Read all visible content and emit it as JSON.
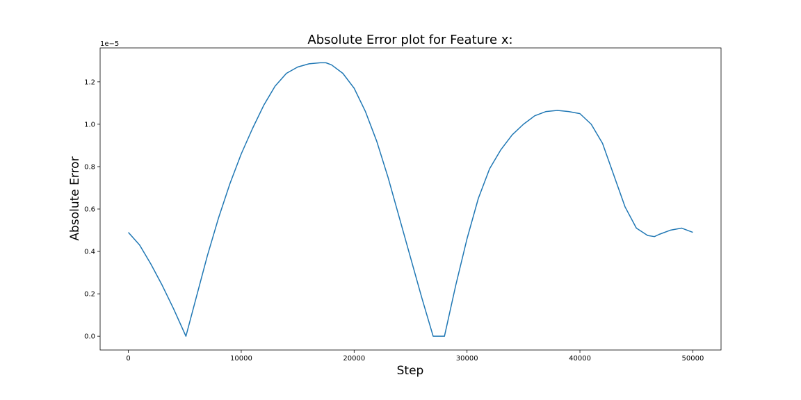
{
  "chart_data": {
    "type": "line",
    "title": "Absolute Error plot for Feature x:",
    "xlabel": "Step",
    "ylabel": "Absolute Error",
    "y_offset_label": "1e−5",
    "xlim": [
      -2500,
      52500
    ],
    "ylim": [
      -0.065,
      1.36
    ],
    "xticks": [
      0,
      10000,
      20000,
      30000,
      40000,
      50000
    ],
    "xtick_labels": [
      "0",
      "10000",
      "20000",
      "30000",
      "40000",
      "50000"
    ],
    "yticks": [
      0.0,
      0.2,
      0.4,
      0.6,
      0.8,
      1.0,
      1.2
    ],
    "ytick_labels": [
      "0.0",
      "0.2",
      "0.4",
      "0.6",
      "0.8",
      "1.0",
      "1.2"
    ],
    "grid": false,
    "line_color": "#1f77b4",
    "series": [
      {
        "x": [
          0,
          1000,
          2000,
          3000,
          4000,
          5100,
          6000,
          7000,
          8000,
          9000,
          10000,
          11000,
          12000,
          13000,
          14000,
          15000,
          16000,
          17000,
          17500,
          18000,
          19000,
          20000,
          21000,
          22000,
          23000,
          24000,
          25000,
          26000,
          27000,
          28000,
          29000,
          30000,
          31000,
          32000,
          33000,
          34000,
          35000,
          36000,
          37000,
          38000,
          39000,
          39500,
          40000,
          41000,
          42000,
          43000,
          44000,
          45000,
          46000,
          46600,
          47000,
          48000,
          49000,
          50000
        ],
        "y": [
          0.49,
          0.43,
          0.34,
          0.24,
          0.13,
          0.0,
          0.18,
          0.38,
          0.56,
          0.72,
          0.86,
          0.98,
          1.09,
          1.18,
          1.24,
          1.27,
          1.285,
          1.29,
          1.29,
          1.28,
          1.24,
          1.17,
          1.06,
          0.92,
          0.75,
          0.56,
          0.37,
          0.18,
          0.0,
          0.0,
          0.24,
          0.46,
          0.65,
          0.79,
          0.88,
          0.95,
          1.0,
          1.04,
          1.06,
          1.065,
          1.06,
          1.055,
          1.05,
          1.0,
          0.91,
          0.76,
          0.61,
          0.51,
          0.475,
          0.47,
          0.48,
          0.5,
          0.51,
          0.49
        ]
      }
    ]
  }
}
